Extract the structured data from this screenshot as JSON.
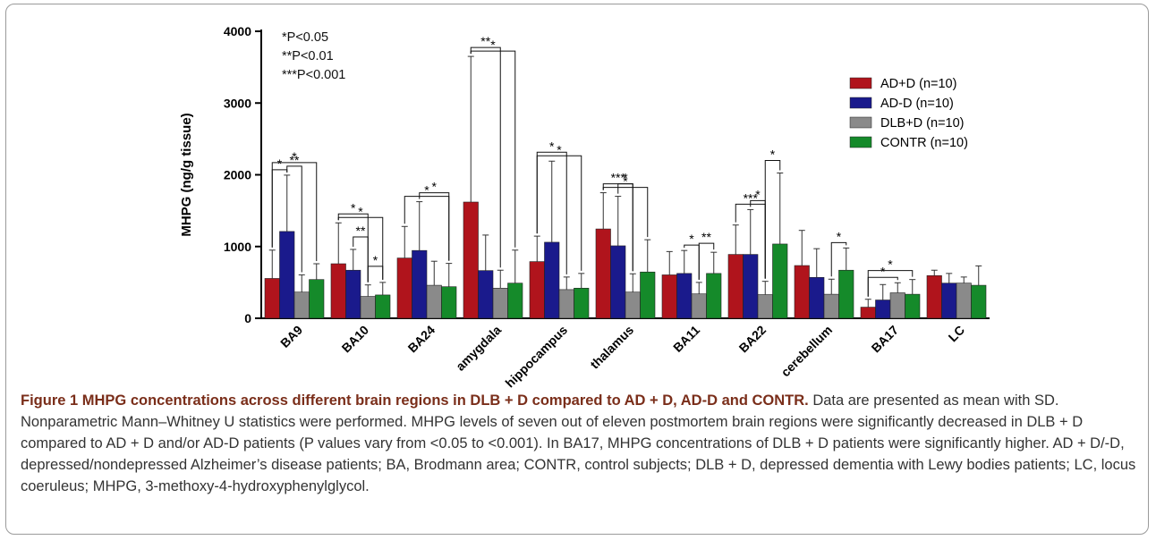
{
  "significance_key": [
    "*P<0.05",
    "**P<0.01",
    "***P<0.001"
  ],
  "caption": {
    "title": "Figure 1 MHPG concentrations across different brain regions in DLB + D compared to AD + D, AD-D and CONTR.",
    "body": " Data are presented as mean with SD. Nonparametric Mann–Whitney U statistics were performed. MHPG levels of seven out of eleven postmortem brain regions were significantly decreased in DLB + D compared to AD + D and/or AD-D patients (P values vary from <0.05 to <0.001). In BA17, MHPG concentrations of DLB + D patients were significantly higher. AD + D/-D, depressed/nondepressed Alzheimer’s disease patients; BA, Brodmann area; CONTR, control subjects; DLB + D, depressed dementia with Lewy bodies patients; LC, locus coeruleus; MHPG, 3-methoxy-4-hydroxyphenylglycol."
  },
  "chart_data": {
    "type": "bar",
    "ylabel": "MHPG (ng/g tissue)",
    "ylim": [
      0,
      4000
    ],
    "yticks": [
      0,
      1000,
      2000,
      3000,
      4000
    ],
    "categories": [
      "BA9",
      "BA10",
      "BA24",
      "amygdala",
      "hippocampus",
      "thalamus",
      "BA11",
      "BA22",
      "cerebellum",
      "BA17",
      "LC"
    ],
    "legend_position": "top-right",
    "series": [
      {
        "name": "AD+D (n=10)",
        "color": "#b0141c",
        "values": [
          555,
          760,
          840,
          1620,
          790,
          1245,
          605,
          890,
          735,
          155,
          595
        ],
        "sd": [
          395,
          570,
          440,
          2030,
          355,
          505,
          325,
          410,
          490,
          110,
          75
        ]
      },
      {
        "name": "AD-D (n=10)",
        "color": "#1a1a8c",
        "values": [
          1210,
          670,
          945,
          665,
          1060,
          1010,
          625,
          890,
          570,
          255,
          490
        ],
        "sd": [
          785,
          290,
          680,
          495,
          1130,
          690,
          320,
          625,
          400,
          215,
          135
        ]
      },
      {
        "name": "DLB+D (n=10)",
        "color": "#8a8a8a",
        "values": [
          365,
          305,
          460,
          420,
          400,
          365,
          340,
          330,
          335,
          355,
          490
        ],
        "sd": [
          240,
          160,
          335,
          250,
          175,
          255,
          160,
          185,
          210,
          140,
          85
        ]
      },
      {
        "name": "CONTR (n=10)",
        "color": "#158a2a",
        "values": [
          540,
          325,
          440,
          490,
          420,
          645,
          625,
          1035,
          670,
          335,
          460
        ],
        "sd": [
          220,
          175,
          325,
          460,
          205,
          450,
          295,
          990,
          310,
          205,
          270
        ]
      }
    ],
    "significance_brackets": [
      {
        "region": "BA9",
        "from": "AD+D",
        "to": "AD-D",
        "label": "*"
      },
      {
        "region": "BA9",
        "from": "AD-D",
        "to": "DLB+D",
        "label": "**"
      },
      {
        "region": "BA9",
        "from": "AD+D",
        "to": "CONTR",
        "label": "*"
      },
      {
        "region": "BA10",
        "from": "AD+D",
        "to": "CONTR",
        "label": "*"
      },
      {
        "region": "BA10",
        "from": "AD+D",
        "to": "DLB+D",
        "label": "*"
      },
      {
        "region": "BA10",
        "from": "AD-D",
        "to": "DLB+D",
        "label": "**"
      },
      {
        "region": "BA10",
        "from": "DLB+D",
        "to": "CONTR",
        "label": "*"
      },
      {
        "region": "BA24",
        "from": "AD+D",
        "to": "CONTR",
        "label": "*"
      },
      {
        "region": "BA24",
        "from": "AD-D",
        "to": "CONTR",
        "label": "*"
      },
      {
        "region": "amygdala",
        "from": "AD+D",
        "to": "CONTR",
        "label": "*"
      },
      {
        "region": "amygdala",
        "from": "AD+D",
        "to": "DLB+D",
        "label": "**"
      },
      {
        "region": "hippocampus",
        "from": "AD+D",
        "to": "CONTR",
        "label": "*"
      },
      {
        "region": "hippocampus",
        "from": "AD+D",
        "to": "DLB+D",
        "label": "*"
      },
      {
        "region": "thalamus",
        "from": "AD+D",
        "to": "CONTR",
        "label": "*"
      },
      {
        "region": "thalamus",
        "from": "AD+D",
        "to": "DLB+D",
        "label": "***"
      },
      {
        "region": "thalamus",
        "from": "AD-D",
        "to": "DLB+D",
        "label": "*"
      },
      {
        "region": "BA11",
        "from": "AD-D",
        "to": "DLB+D",
        "label": "*"
      },
      {
        "region": "BA11",
        "from": "DLB+D",
        "to": "CONTR",
        "label": "**"
      },
      {
        "region": "BA22",
        "from": "AD+D",
        "to": "DLB+D",
        "label": "***"
      },
      {
        "region": "BA22",
        "from": "AD-D",
        "to": "DLB+D",
        "label": "*"
      },
      {
        "region": "BA22",
        "from": "DLB+D",
        "to": "CONTR",
        "label": "*"
      },
      {
        "region": "cerebellum",
        "from": "DLB+D",
        "to": "CONTR",
        "label": "*"
      },
      {
        "region": "BA17",
        "from": "AD+D",
        "to": "DLB+D",
        "label": "*"
      },
      {
        "region": "BA17",
        "from": "AD+D",
        "to": "CONTR",
        "label": "*"
      }
    ]
  }
}
